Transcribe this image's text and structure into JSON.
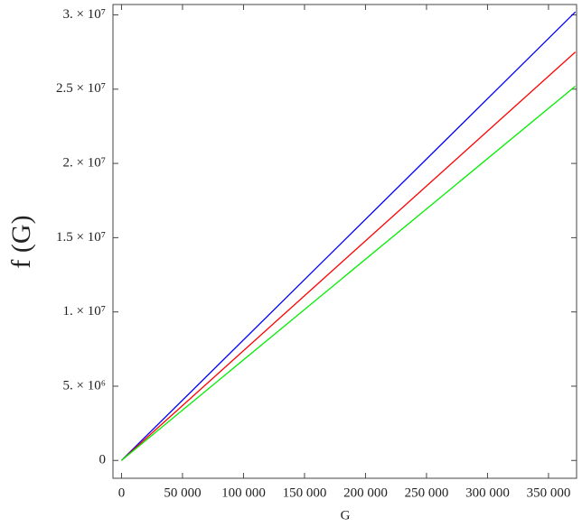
{
  "chart_data": {
    "type": "line",
    "x_label": "G",
    "y_label": "f (G)",
    "x": [
      0,
      372000
    ],
    "series": [
      {
        "color": "#0000ff",
        "values": [
          0,
          30200000
        ]
      },
      {
        "color": "#ff0000",
        "values": [
          0,
          27500000
        ]
      },
      {
        "color": "#00ee00",
        "values": [
          0,
          25200000
        ]
      }
    ],
    "xlim": [
      -7000,
      373000
    ],
    "ylim": [
      -1200000,
      30700000
    ],
    "xticks": [
      0,
      {
        "value": 50000,
        "label": "50 000"
      },
      {
        "value": 100000,
        "label": "100 000"
      },
      {
        "value": 150000,
        "label": "150 000"
      },
      {
        "value": 200000,
        "label": "200 000"
      },
      {
        "value": 250000,
        "label": "250 000"
      },
      {
        "value": 300000,
        "label": "300 000"
      },
      {
        "value": 350000,
        "label": "350 000"
      }
    ],
    "yticks": [
      0,
      {
        "value": 5000000,
        "label": "5. × 10⁶"
      },
      {
        "value": 10000000,
        "label": "1. × 10⁷"
      },
      {
        "value": 15000000,
        "label": "1.5 × 10⁷"
      },
      {
        "value": 20000000,
        "label": "2. × 10⁷"
      },
      {
        "value": 25000000,
        "label": "2.5 × 10⁷"
      },
      {
        "value": 30000000,
        "label": "3. × 10⁷"
      }
    ],
    "grid": false
  }
}
